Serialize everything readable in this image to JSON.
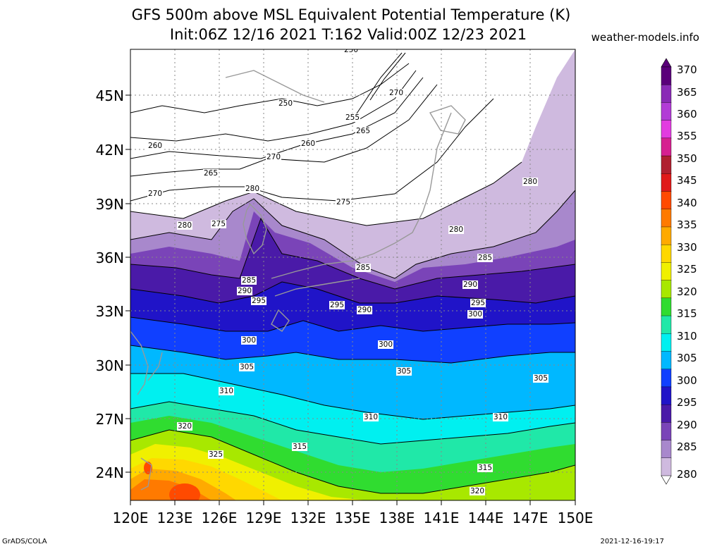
{
  "title_line1": "GFS 500m above MSL Equivalent Potential Temperature (K)",
  "title_line2": "Init:06Z 12/16 2021 T:162 Valid:00Z 12/23 2021",
  "site": "weather-models.info",
  "footer_left": "GrADS/COLA",
  "footer_right": "2021-12-16-19:17",
  "axes": {
    "lon_labels": [
      "120E",
      "123E",
      "126E",
      "129E",
      "132E",
      "135E",
      "138E",
      "141E",
      "144E",
      "147E",
      "150E"
    ],
    "lat_labels": [
      "45N",
      "42N",
      "39N",
      "36N",
      "33N",
      "30N",
      "27N",
      "24N"
    ]
  },
  "colorbar": {
    "levels": [
      "370",
      "365",
      "360",
      "355",
      "350",
      "345",
      "340",
      "335",
      "330",
      "325",
      "320",
      "315",
      "310",
      "305",
      "300",
      "295",
      "290",
      "285",
      "280"
    ],
    "colors": [
      "#5a007a",
      "#8a2bb6",
      "#b23cd6",
      "#e23ce0",
      "#d62090",
      "#b02030",
      "#e01a1a",
      "#ff4a00",
      "#ff7a00",
      "#ffaa00",
      "#ffd800",
      "#f0f000",
      "#a8e800",
      "#30dc30",
      "#20e8a8",
      "#00f0f0",
      "#00b8ff",
      "#1040ff",
      "#2014c8",
      "#4a1aa8",
      "#7a44b8",
      "#a888cc",
      "#cfbadf"
    ]
  },
  "contour_labels": [
    "250",
    "255",
    "260",
    "265",
    "270",
    "275",
    "280",
    "285",
    "290",
    "295",
    "300",
    "305",
    "310",
    "315",
    "320",
    "325"
  ]
}
